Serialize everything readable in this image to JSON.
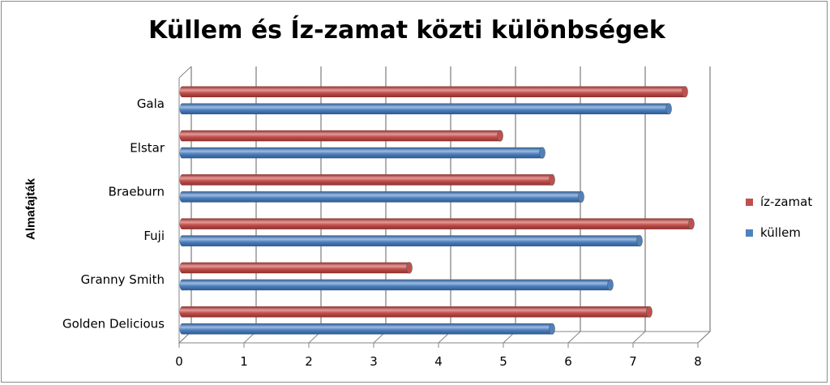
{
  "chart_data": {
    "type": "bar",
    "orientation": "horizontal",
    "title": "Küllem és Íz-zamat közti különbségek",
    "ylabel": "Almafajták",
    "xlabel": "",
    "categories": [
      "Gala",
      "Elstar",
      "Braeburn",
      "Fuji",
      "Granny Smith",
      "Golden Delicious"
    ],
    "series": [
      {
        "name": "íz-zamat",
        "color": "#c0504d",
        "values": [
          7.8,
          4.95,
          5.75,
          7.9,
          3.55,
          7.25
        ]
      },
      {
        "name": "küllem",
        "color": "#4f81bd",
        "values": [
          7.55,
          5.6,
          6.2,
          7.1,
          6.65,
          5.75
        ]
      }
    ],
    "xlim": [
      0,
      8
    ],
    "xticks": [
      "0",
      "1",
      "2",
      "3",
      "4",
      "5",
      "6",
      "7",
      "8"
    ],
    "grid": true,
    "legend": "right",
    "style": "3d-cylinder"
  }
}
